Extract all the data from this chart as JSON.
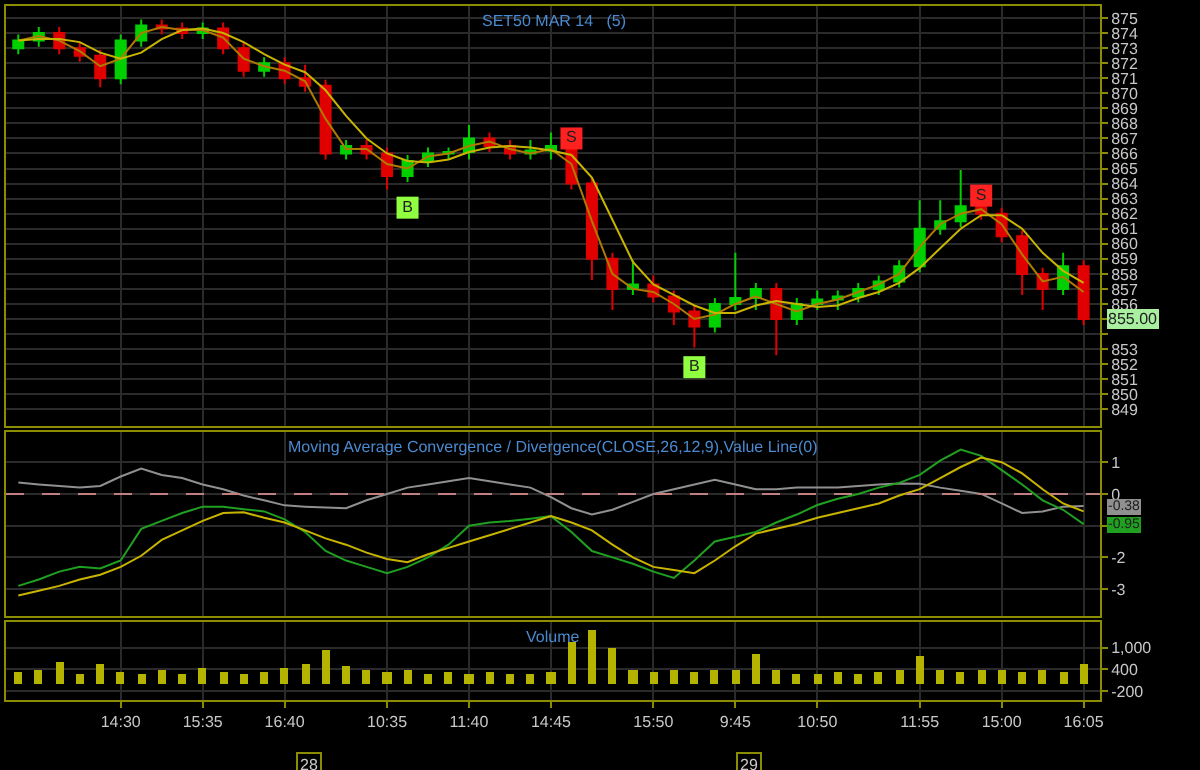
{
  "chart_data": [
    {
      "type": "candlestick",
      "title": "SET50 MAR 14   (5)",
      "tick_labels": "y",
      "grid": true,
      "categories": [
        null,
        null,
        null,
        null,
        null,
        null,
        null,
        null,
        null,
        null,
        null,
        null,
        null,
        null,
        null,
        null,
        null,
        null,
        null,
        null,
        null,
        null,
        null,
        null,
        null,
        null,
        null,
        null,
        null,
        null,
        null,
        null,
        null,
        null,
        null,
        null,
        null,
        null,
        null,
        null,
        null,
        null,
        null,
        null,
        null,
        null,
        null,
        null,
        null,
        null,
        null,
        null,
        null
      ],
      "ohlc": [
        [
          873.0,
          873.9,
          872.6,
          873.5
        ],
        [
          873.5,
          874.4,
          873.1,
          874.0
        ],
        [
          874.0,
          874.4,
          872.6,
          873.0
        ],
        [
          873.0,
          873.4,
          872.1,
          872.5
        ],
        [
          872.5,
          872.9,
          870.4,
          871.0
        ],
        [
          871.0,
          873.9,
          870.6,
          873.5
        ],
        [
          873.5,
          874.9,
          873.1,
          874.5
        ],
        [
          874.5,
          874.9,
          873.9,
          874.3
        ],
        [
          874.3,
          874.7,
          873.6,
          874.0
        ],
        [
          874.0,
          874.7,
          873.6,
          874.3
        ],
        [
          874.3,
          874.7,
          872.6,
          873.0
        ],
        [
          873.0,
          873.4,
          871.1,
          871.5
        ],
        [
          871.5,
          872.4,
          871.1,
          872.0
        ],
        [
          872.0,
          872.4,
          870.6,
          871.0
        ],
        [
          871.0,
          871.9,
          870.1,
          870.5
        ],
        [
          870.5,
          870.9,
          865.6,
          866.0
        ],
        [
          866.0,
          866.9,
          865.6,
          866.5
        ],
        [
          866.5,
          866.9,
          865.6,
          866.0
        ],
        [
          866.0,
          866.4,
          863.6,
          864.5
        ],
        [
          864.5,
          865.9,
          864.1,
          865.5
        ],
        [
          865.5,
          866.4,
          865.1,
          866.0
        ],
        [
          866.0,
          866.4,
          865.6,
          866.1
        ],
        [
          866.1,
          867.9,
          865.6,
          867.0
        ],
        [
          867.0,
          867.4,
          866.1,
          866.5
        ],
        [
          866.5,
          866.9,
          865.6,
          866.0
        ],
        [
          866.0,
          866.9,
          865.6,
          866.2
        ],
        [
          866.2,
          867.4,
          865.6,
          866.5
        ],
        [
          866.5,
          866.9,
          863.6,
          864.0
        ],
        [
          864.0,
          864.4,
          857.6,
          859.0
        ],
        [
          859.0,
          859.4,
          855.6,
          857.0
        ],
        [
          857.0,
          858.9,
          856.6,
          857.3
        ],
        [
          857.3,
          857.9,
          856.1,
          856.5
        ],
        [
          856.5,
          856.9,
          854.6,
          855.5
        ],
        [
          855.5,
          855.9,
          853.1,
          854.5
        ],
        [
          854.5,
          856.4,
          854.1,
          856.0
        ],
        [
          856.0,
          859.4,
          855.6,
          856.4
        ],
        [
          856.4,
          857.4,
          855.6,
          857.0
        ],
        [
          857.0,
          857.4,
          852.6,
          855.0
        ],
        [
          855.0,
          856.4,
          854.6,
          856.0
        ],
        [
          856.0,
          856.9,
          855.6,
          856.3
        ],
        [
          856.3,
          856.9,
          855.6,
          856.5
        ],
        [
          856.5,
          857.4,
          856.1,
          857.0
        ],
        [
          857.0,
          857.9,
          856.6,
          857.5
        ],
        [
          857.5,
          858.9,
          857.1,
          858.5
        ],
        [
          858.5,
          862.9,
          858.1,
          861.0
        ],
        [
          861.0,
          862.9,
          860.6,
          861.5
        ],
        [
          861.5,
          864.9,
          861.1,
          862.5
        ],
        [
          862.5,
          863.9,
          861.6,
          862.0
        ],
        [
          862.0,
          862.4,
          860.1,
          860.5
        ],
        [
          860.5,
          860.9,
          856.6,
          858.0
        ],
        [
          858.0,
          858.4,
          855.6,
          857.0
        ],
        [
          857.0,
          859.4,
          856.6,
          858.5
        ],
        [
          858.5,
          858.9,
          854.6,
          855.0
        ]
      ],
      "series": [
        {
          "type": "line",
          "color": "#b07a00",
          "values": [
            873.5,
            873.8,
            873.5,
            872.8,
            871.8,
            872.3,
            874.0,
            874.4,
            874.2,
            874.2,
            873.7,
            872.3,
            871.8,
            871.5,
            870.8,
            868.3,
            866.3,
            866.3,
            865.3,
            865.0,
            865.8,
            866.0,
            866.5,
            866.8,
            866.3,
            866.0,
            866.3,
            865.3,
            861.5,
            858.0,
            857.0,
            856.8,
            856.0,
            855.0,
            855.3,
            856.0,
            856.5,
            856.0,
            855.5,
            856.0,
            856.3,
            856.8,
            857.3,
            858.0,
            859.8,
            861.3,
            862.0,
            862.3,
            861.3,
            859.3,
            857.5,
            857.8,
            856.8
          ]
        },
        {
          "type": "line",
          "color": "#c8b400",
          "values": [
            873.5,
            873.6,
            873.6,
            873.4,
            872.7,
            872.3,
            872.7,
            873.6,
            874.2,
            874.3,
            874.0,
            873.4,
            872.6,
            871.9,
            871.4,
            870.2,
            868.5,
            867.0,
            866.0,
            865.5,
            865.4,
            865.6,
            866.1,
            866.4,
            866.5,
            866.4,
            866.2,
            865.9,
            864.4,
            861.6,
            858.8,
            857.3,
            856.6,
            855.9,
            855.4,
            855.4,
            855.9,
            856.2,
            856.0,
            855.8,
            855.9,
            856.4,
            856.8,
            857.4,
            858.4,
            859.7,
            861.0,
            861.9,
            861.9,
            861.0,
            859.4,
            858.2,
            857.4
          ]
        },
        {
          "type": "scatter",
          "color": "#90ff40",
          "marker": "square",
          "values": [
            null,
            null,
            null,
            null,
            null,
            null,
            null,
            null,
            null,
            null,
            null,
            null,
            null,
            null,
            null,
            null,
            null,
            null,
            null,
            862.4,
            null,
            null,
            null,
            null,
            null,
            null,
            null,
            null,
            null,
            null,
            null,
            null,
            null,
            851.8,
            null,
            null,
            null,
            null,
            null,
            null,
            null,
            null,
            null,
            null,
            null,
            null,
            null,
            null,
            null,
            null,
            null,
            null,
            null
          ],
          "value_labels": [
            null,
            null,
            null,
            null,
            null,
            null,
            null,
            null,
            null,
            null,
            null,
            null,
            null,
            null,
            null,
            null,
            null,
            null,
            null,
            "B",
            null,
            null,
            null,
            null,
            null,
            null,
            null,
            null,
            null,
            null,
            null,
            null,
            null,
            "B",
            null,
            null,
            null,
            null,
            null,
            null,
            null,
            null,
            null,
            null,
            null,
            null,
            null,
            null,
            null,
            null,
            null,
            null,
            null
          ]
        },
        {
          "type": "scatter",
          "color": "#ff2020",
          "marker": "square",
          "values": [
            null,
            null,
            null,
            null,
            null,
            null,
            null,
            null,
            null,
            null,
            null,
            null,
            null,
            null,
            null,
            null,
            null,
            null,
            null,
            null,
            null,
            null,
            null,
            null,
            null,
            null,
            null,
            867.0,
            null,
            null,
            null,
            null,
            null,
            null,
            null,
            null,
            null,
            null,
            null,
            null,
            null,
            null,
            null,
            null,
            null,
            null,
            null,
            863.2,
            null,
            null,
            null,
            null,
            null
          ],
          "value_labels": [
            null,
            null,
            null,
            null,
            null,
            null,
            null,
            null,
            null,
            null,
            null,
            null,
            null,
            null,
            null,
            null,
            null,
            null,
            null,
            null,
            null,
            null,
            null,
            null,
            null,
            null,
            null,
            "S",
            null,
            null,
            null,
            null,
            null,
            null,
            null,
            null,
            null,
            null,
            null,
            null,
            null,
            null,
            null,
            null,
            null,
            null,
            null,
            "S",
            null,
            null,
            null,
            null,
            null
          ]
        }
      ],
      "ylim": [
        847.9,
        875.8
      ],
      "yticks": [
        849,
        850,
        851,
        852,
        853,
        {
          "value": 854,
          "label": null
        },
        {
          "value": 855,
          "label": null
        },
        856,
        857,
        858,
        859,
        860,
        861,
        862,
        863,
        864,
        865,
        866,
        867,
        868,
        869,
        870,
        871,
        872,
        873,
        874,
        875
      ],
      "annotations": [
        "855.00"
      ]
    },
    {
      "type": "line",
      "title": "Moving Average Convergence / Divergence(CLOSE,26,12,9),Value Line(0)",
      "tick_labels": "y",
      "grid": true,
      "categories": [
        null,
        null,
        null,
        null,
        null,
        null,
        null,
        null,
        null,
        null,
        null,
        null,
        null,
        null,
        null,
        null,
        null,
        null,
        null,
        null,
        null,
        null,
        null,
        null,
        null,
        null,
        null,
        null,
        null,
        null,
        null,
        null,
        null,
        null,
        null,
        null,
        null,
        null,
        null,
        null,
        null,
        null,
        null,
        null,
        null,
        null,
        null,
        null,
        null,
        null,
        null,
        null,
        null
      ],
      "series": [
        {
          "color": "#909090",
          "values": [
            0.36,
            0.3,
            0.25,
            0.2,
            0.25,
            0.55,
            0.8,
            0.6,
            0.5,
            0.3,
            0.15,
            -0.05,
            -0.2,
            -0.36,
            -0.4,
            -0.43,
            -0.45,
            -0.2,
            0.0,
            0.2,
            0.3,
            0.4,
            0.5,
            0.4,
            0.3,
            0.2,
            -0.1,
            -0.45,
            -0.65,
            -0.5,
            -0.25,
            0.0,
            0.15,
            0.3,
            0.45,
            0.3,
            0.15,
            0.15,
            0.2,
            0.2,
            0.2,
            0.25,
            0.3,
            0.33,
            0.32,
            0.2,
            0.1,
            0.0,
            -0.3,
            -0.6,
            -0.55,
            -0.4,
            -0.38
          ]
        },
        {
          "color": "#20a020",
          "values": [
            -2.9,
            -2.7,
            -2.45,
            -2.3,
            -2.35,
            -2.1,
            -1.1,
            -0.85,
            -0.6,
            -0.4,
            -0.4,
            -0.48,
            -0.55,
            -0.8,
            -1.2,
            -1.8,
            -2.1,
            -2.3,
            -2.5,
            -2.3,
            -2.0,
            -1.6,
            -1.0,
            -0.9,
            -0.85,
            -0.78,
            -0.7,
            -1.2,
            -1.8,
            -2.0,
            -2.2,
            -2.45,
            -2.65,
            -2.1,
            -1.5,
            -1.35,
            -1.2,
            -0.9,
            -0.65,
            -0.35,
            -0.15,
            0.0,
            0.2,
            0.35,
            0.6,
            1.05,
            1.4,
            1.2,
            0.75,
            0.3,
            -0.2,
            -0.5,
            -0.95
          ]
        },
        {
          "color": "#c8b400",
          "values": [
            -3.2,
            -3.05,
            -2.9,
            -2.7,
            -2.55,
            -2.3,
            -1.95,
            -1.45,
            -1.15,
            -0.85,
            -0.6,
            -0.58,
            -0.75,
            -0.9,
            -1.15,
            -1.4,
            -1.6,
            -1.85,
            -2.05,
            -2.15,
            -1.9,
            -1.7,
            -1.5,
            -1.3,
            -1.1,
            -0.9,
            -0.7,
            -0.9,
            -1.15,
            -1.6,
            -2.0,
            -2.3,
            -2.4,
            -2.5,
            -2.1,
            -1.65,
            -1.25,
            -1.1,
            -0.95,
            -0.75,
            -0.6,
            -0.45,
            -0.3,
            -0.05,
            0.15,
            0.5,
            0.85,
            1.15,
            1.0,
            0.65,
            0.15,
            -0.3,
            -0.55
          ]
        }
      ],
      "ylim": [
        -3.85,
        1.95
      ],
      "yticks": [
        1,
        0,
        {
          "value": -1,
          "label": null
        },
        -2,
        -3
      ],
      "ref_lines": [
        {
          "axis": "y",
          "value": 0,
          "color": "#c08080",
          "line_style": "dashed"
        }
      ],
      "annotations": [
        "-0.38",
        "-0.95"
      ]
    },
    {
      "type": "bar",
      "title": "Volume",
      "color": "#b4b400",
      "grid": true,
      "categories": [
        null,
        null,
        null,
        null,
        null,
        "14:30",
        null,
        null,
        null,
        "15:35",
        null,
        null,
        null,
        "16:40",
        null,
        null,
        null,
        null,
        "10:35",
        null,
        null,
        null,
        "11:40",
        null,
        null,
        null,
        "14:45",
        null,
        null,
        null,
        null,
        "15:50",
        null,
        null,
        null,
        "9:45",
        null,
        null,
        null,
        "10:50",
        null,
        null,
        null,
        null,
        "11:55",
        null,
        null,
        null,
        "15:00",
        null,
        null,
        null,
        "16:05"
      ],
      "values": [
        300,
        350,
        600,
        250,
        550,
        300,
        250,
        400,
        250,
        450,
        300,
        250,
        300,
        450,
        550,
        900,
        500,
        400,
        300,
        350,
        250,
        300,
        250,
        300,
        250,
        250,
        300,
        1150,
        1500,
        1000,
        350,
        300,
        350,
        300,
        400,
        350,
        800,
        350,
        250,
        250,
        300,
        250,
        300,
        350,
        750,
        400,
        300,
        350,
        400,
        300,
        350,
        300,
        550
      ],
      "ylim": [
        -450,
        1700
      ],
      "yticks": [
        {
          "value": 1000,
          "label": "1,000"
        },
        400,
        -200
      ],
      "annotations": [
        "28",
        "29"
      ]
    }
  ]
}
